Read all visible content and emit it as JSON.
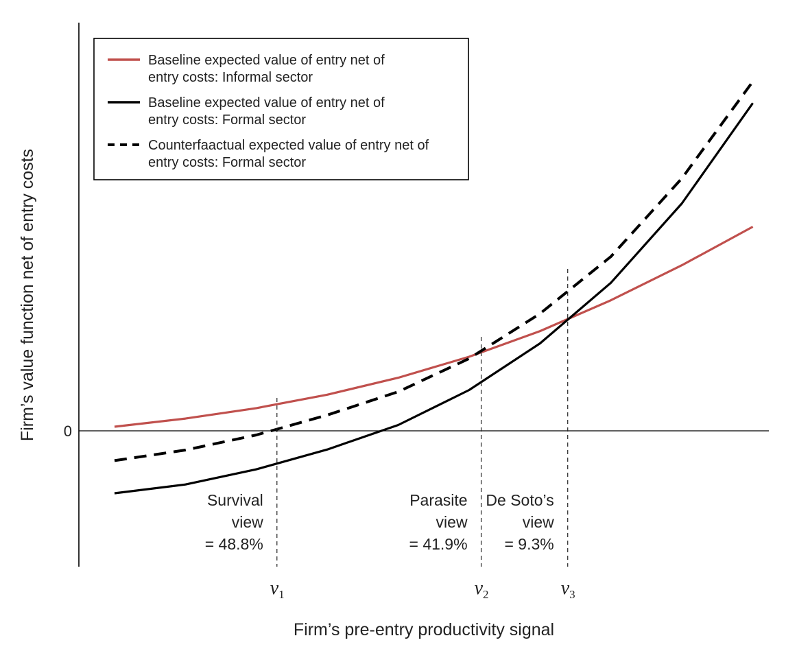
{
  "chart_data": {
    "type": "line",
    "title": "",
    "xlabel": "Firm’s pre-entry productivity signal",
    "ylabel": "Firm’s value function net of entry costs",
    "y_ticks": [
      {
        "label": "0",
        "value": 0
      }
    ],
    "x_ticks": [
      {
        "base": "ν",
        "sub": "1",
        "x": 2.29
      },
      {
        "base": "ν",
        "sub": "2",
        "x": 5.17
      },
      {
        "base": "ν",
        "sub": "3",
        "x": 6.39
      }
    ],
    "xlim": [
      -0.5,
      10.0
    ],
    "ylim": [
      -2.0,
      5.9
    ],
    "grid": false,
    "legend_position": "top-left",
    "series": [
      {
        "name": "Baseline expected value of entry net of entry costs: Informal sector",
        "legend_lines": [
          "Baseline expected value of entry net of",
          "entry costs: Informal sector"
        ],
        "color": "#c0504d",
        "style": "solid",
        "x": [
          0,
          1,
          2,
          3,
          4,
          5,
          6,
          7,
          8,
          9
        ],
        "y": [
          0.07,
          0.21,
          0.39,
          0.62,
          0.91,
          1.27,
          1.71,
          2.24,
          2.84,
          3.5
        ]
      },
      {
        "name": "Baseline expected value of entry net of entry costs: Formal sector",
        "legend_lines": [
          "Baseline expected value of entry net of",
          "entry costs: Formal sector"
        ],
        "color": "#000000",
        "style": "solid",
        "x": [
          0,
          1,
          2,
          3,
          4,
          5,
          6,
          7,
          8,
          9
        ],
        "y": [
          -1.07,
          -0.92,
          -0.66,
          -0.32,
          0.1,
          0.7,
          1.5,
          2.54,
          3.9,
          5.62
        ]
      },
      {
        "name": "Counterfaactual expected value of entry net of entry costs: Formal sector",
        "legend_lines": [
          "Counterfaactual expected value of entry net of",
          "entry costs: Formal sector"
        ],
        "color": "#000000",
        "style": "dashed",
        "x": [
          0,
          1,
          2,
          3,
          4,
          5,
          6,
          7,
          8,
          9
        ],
        "y": [
          -0.51,
          -0.33,
          -0.07,
          0.27,
          0.67,
          1.24,
          2.01,
          2.99,
          4.33,
          5.99
        ]
      }
    ],
    "annotations": [
      {
        "lines": [
          "Survival",
          "view",
          "= 48.8%"
        ],
        "region_end_x": 2.29
      },
      {
        "lines": [
          "Parasite",
          "view",
          "= 41.9%"
        ],
        "region_end_x": 5.17
      },
      {
        "lines": [
          "De Soto’s",
          "view",
          "= 9.3%"
        ],
        "region_end_x": 6.39
      }
    ]
  }
}
